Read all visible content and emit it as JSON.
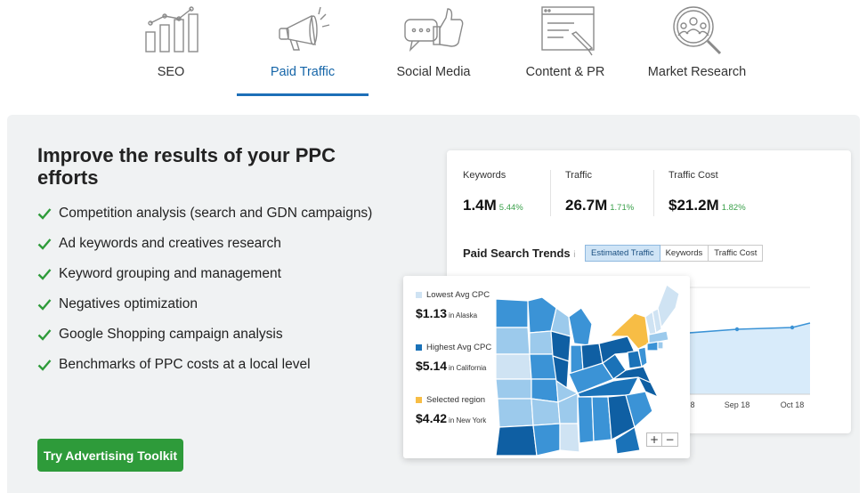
{
  "tabs": [
    {
      "label": "SEO",
      "icon": "bar-chart-icon",
      "active": false
    },
    {
      "label": "Paid Traffic",
      "icon": "megaphone-icon",
      "active": true
    },
    {
      "label": "Social Media",
      "icon": "thumbs-up-icon",
      "active": false
    },
    {
      "label": "Content & PR",
      "icon": "document-pen-icon",
      "active": false
    },
    {
      "label": "Market Research",
      "icon": "magnifier-people-icon",
      "active": false
    }
  ],
  "main": {
    "heading": "Improve the results of your PPC efforts",
    "features": [
      "Competition analysis (search and GDN campaigns)",
      "Ad keywords and creatives research",
      "Keyword grouping and management",
      "Negatives optimization",
      "Google Shopping campaign analysis",
      "Benchmarks of PPC costs at a local level"
    ],
    "cta_label": "Try Advertising Toolkit"
  },
  "metrics": [
    {
      "label": "Keywords",
      "value": "1.4M",
      "change": "5.44%"
    },
    {
      "label": "Traffic",
      "value": "26.7M",
      "change": "1.71%"
    },
    {
      "label": "Traffic Cost",
      "value": "$21.2M",
      "change": "1.82%"
    }
  ],
  "trends": {
    "title": "Paid Search Trends",
    "info_mark": "i",
    "toggles": [
      {
        "label": "Estimated Traffic",
        "selected": true
      },
      {
        "label": "Keywords",
        "selected": false
      },
      {
        "label": "Traffic Cost",
        "selected": false
      }
    ],
    "x_ticks": [
      "8",
      "Sep 18",
      "Oct 18"
    ]
  },
  "map_legend": [
    {
      "label": "Lowest Avg CPC",
      "value": "$1.13",
      "location": "in Alaska",
      "color": "#cfe3f3"
    },
    {
      "label": "Highest Avg CPC",
      "value": "$5.14",
      "location": "in California",
      "color": "#1a72b8"
    },
    {
      "label": "Selected region",
      "value": "$4.42",
      "location": "in New York",
      "color": "#f7bd45"
    }
  ],
  "zoom": {
    "plus": "+",
    "minus": "−"
  },
  "colors": {
    "accent": "#1d6fb8",
    "cta": "#2e9b3a",
    "positive": "#3aa04a",
    "map_dark": "#0f5fa3",
    "map_mid": "#3b93d6",
    "map_light": "#9ccaec",
    "selected_state": "#f7bd45"
  }
}
